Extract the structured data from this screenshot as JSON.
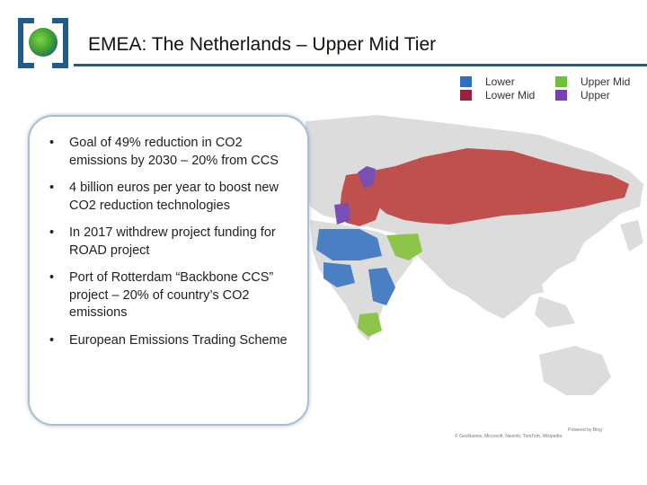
{
  "title": "EMEA: The Netherlands – Upper Mid Tier",
  "legend": [
    {
      "label": "Lower",
      "color": "#2f6fc0"
    },
    {
      "label": "Lower Mid",
      "color": "#9b1f3e"
    },
    {
      "label": "Upper Mid",
      "color": "#6fbf3a"
    },
    {
      "label": "Upper",
      "color": "#7a3fb0"
    }
  ],
  "bullets": [
    {
      "text": "Goal of 49% reduction in CO2 emissions by 2030 – 20% from CCS"
    },
    {
      "text": "4 billion euros per year to boost new CO2 reduction technologies"
    },
    {
      "text": "In 2017 withdrew project funding for ROAD project"
    },
    {
      "text": "Port of Rotterdam “Backbone CCS” project – 20% of country’s CO2 emissions"
    },
    {
      "text": "European Emissions Trading Scheme"
    }
  ],
  "bullet_glyph": "•",
  "map": {
    "credit_powered": "Powered by Bing",
    "credit_copyright": "© GeoNames, Microsoft, Navinfo, TomTom, Wikipedia",
    "colors": {
      "land": "#dcdcdc",
      "russia": "#c0504d",
      "lower": "#4a7fc4",
      "upper_mid": "#8dc44a",
      "upper": "#7a4fb5"
    }
  }
}
